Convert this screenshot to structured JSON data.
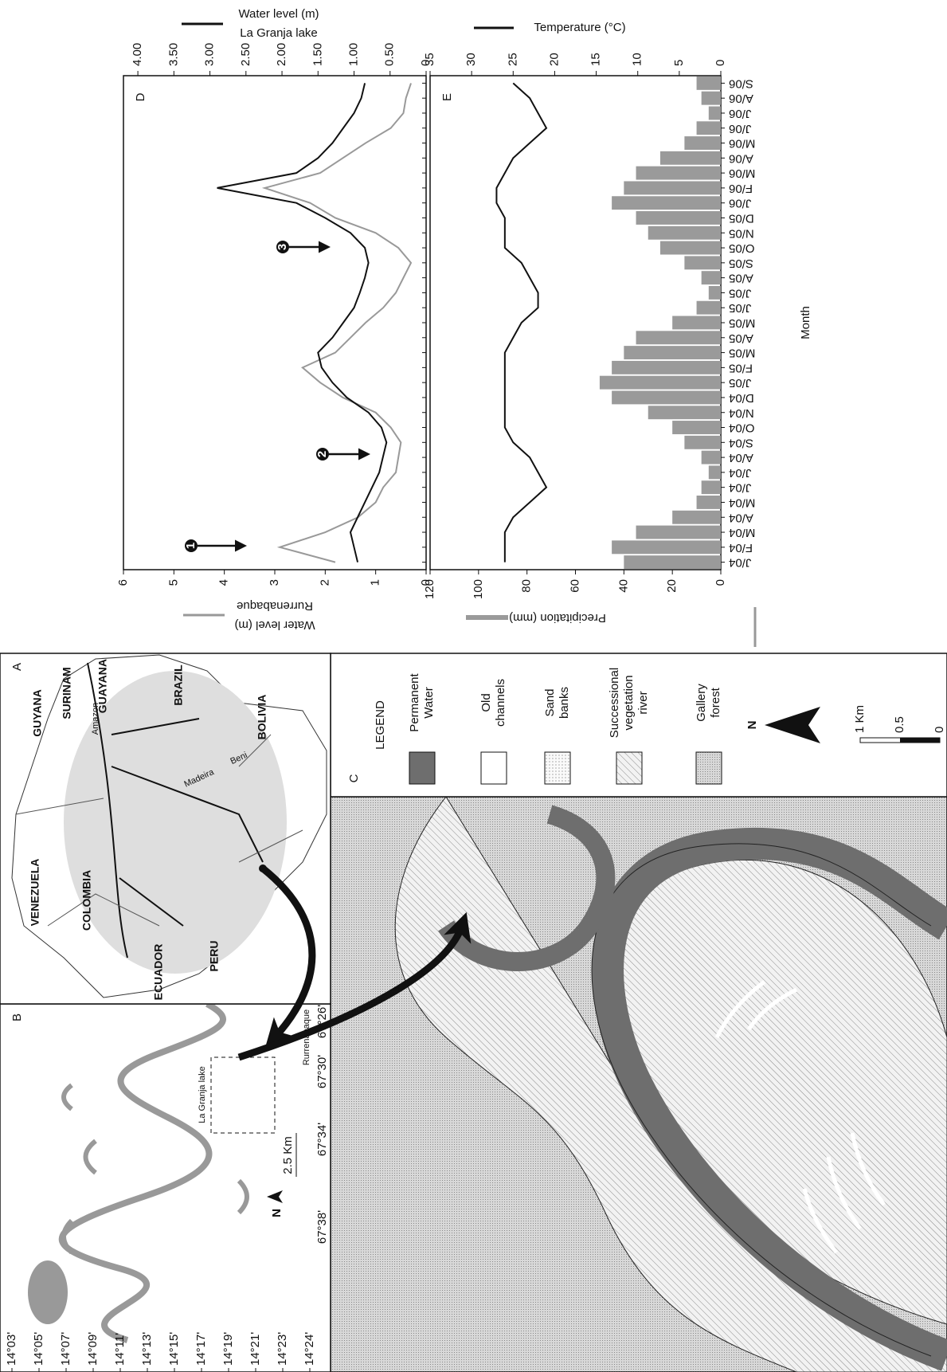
{
  "chart_data": [
    {
      "type": "line",
      "label": "D",
      "ylabel": [
        "Water level (m)",
        "Rurrenabaque"
      ],
      "y2label": [
        "Water level (m)",
        "La Granja lake"
      ],
      "ylim": [
        0,
        6
      ],
      "yticks": [
        0,
        1,
        2,
        3,
        4,
        5,
        6
      ],
      "y2lim": [
        0,
        4.2
      ],
      "y2ticks": [
        0,
        {
          "value": 0.5,
          "label": "0.50"
        },
        {
          "value": 1,
          "label": "1.00"
        },
        {
          "value": 1.5,
          "label": "1.50"
        },
        {
          "value": 2,
          "label": "2.00"
        },
        {
          "value": 2.5,
          "label": "2.50"
        },
        {
          "value": 3,
          "label": "3.00"
        },
        {
          "value": 3.5,
          "label": "3.50"
        },
        {
          "value": 4,
          "label": "4.00"
        }
      ],
      "series": [
        {
          "color": "#999999",
          "axis": "y",
          "values": [
            1.8,
            2.9,
            2.0,
            1.35,
            1.0,
            0.85,
            0.6,
            0.55,
            0.5,
            0.7,
            1.0,
            1.65,
            2.1,
            2.45,
            1.8,
            1.5,
            1.2,
            0.85,
            0.6,
            0.45,
            0.3,
            0.55,
            1.0,
            1.8,
            2.3,
            3.2,
            2.1,
            1.65,
            1.2,
            0.7,
            0.45,
            0.4,
            0.3
          ]
        },
        {
          "color": "#111111",
          "axis": "y2",
          "values": [
            0.95,
            1.0,
            1.05,
            0.95,
            0.85,
            0.75,
            0.65,
            0.6,
            0.55,
            0.62,
            0.8,
            1.1,
            1.3,
            1.45,
            1.5,
            1.3,
            1.15,
            1.0,
            0.92,
            0.85,
            0.8,
            0.85,
            1.05,
            1.4,
            1.8,
            2.9,
            1.8,
            1.5,
            1.3,
            1.15,
            1.0,
            0.9,
            0.85
          ]
        }
      ],
      "annotations": [
        "1",
        "2",
        "3"
      ]
    },
    {
      "type": "combo",
      "label": "E",
      "xlabel": "Month",
      "categories": [
        "J/04",
        "F/04",
        "M/04",
        "A/04",
        "M/04",
        "J/04",
        "J/04",
        "A/04",
        "S/04",
        "O/04",
        "N/04",
        "D/04",
        "J/05",
        "F/05",
        "M/05",
        "A/05",
        "M/05",
        "J/05",
        "J/05",
        "A/05",
        "S/05",
        "O/05",
        "N/05",
        "D/05",
        "J/06",
        "F/06",
        "M/06",
        "A/06",
        "M/06",
        "J/06",
        "J/06",
        "A/06",
        "S/06"
      ],
      "ylabel": "Precipitation (mm)",
      "y2label": "Temperature (°C)",
      "ylim": [
        0,
        120
      ],
      "yticks": [
        0,
        20,
        40,
        60,
        80,
        100,
        120
      ],
      "y2lim": [
        0,
        35
      ],
      "y2ticks": [
        0,
        5,
        10,
        15,
        20,
        25,
        30,
        35
      ],
      "series": [
        {
          "type": "bar",
          "color": "#9a9a9a",
          "axis": "y",
          "values": [
            40,
            45,
            35,
            20,
            10,
            8,
            5,
            8,
            15,
            20,
            30,
            45,
            50,
            45,
            40,
            35,
            20,
            10,
            5,
            8,
            15,
            25,
            30,
            35,
            45,
            40,
            35,
            25,
            15,
            10,
            5,
            8,
            10
          ]
        },
        {
          "type": "line",
          "color": "#111111",
          "axis": "y2",
          "values": [
            26,
            26,
            26,
            25,
            23,
            21,
            22,
            23,
            25,
            26,
            26,
            26,
            26,
            26,
            26,
            25,
            24,
            22,
            22,
            23,
            24,
            26,
            26,
            26,
            27,
            27,
            26,
            25,
            23,
            21,
            22,
            23,
            25
          ]
        }
      ]
    }
  ],
  "maps": {
    "A": {
      "label": "A",
      "countries": [
        "VENEZUELA",
        "GUYANA",
        "SURINAM",
        "GUAYANA",
        "COLOMBIA",
        "ECUADOR",
        "PERU",
        "BRAZIL",
        "BOLIVIA"
      ],
      "rivers": [
        "Amazon",
        "Madeira",
        "Beni"
      ]
    },
    "B": {
      "label": "B",
      "latitudes": [
        "14°03'",
        "14°05'",
        "14°07'",
        "14°09'",
        "14°11'",
        "14°13'",
        "14°15'",
        "14°17'",
        "14°19'",
        "14°21'",
        "14°23'",
        "14°24'"
      ],
      "longitudes": [
        "67°38'",
        "67°34'",
        "67°30'",
        "67°26'"
      ],
      "lake": "La Granja lake",
      "town": "Rurrenabaque",
      "north": "N",
      "scale": "2.5 Km"
    },
    "C": {
      "label": "C",
      "legend_title": "LEGEND",
      "legend": [
        [
          "Permanent",
          "Water"
        ],
        [
          "Old",
          "channels"
        ],
        [
          "Sand",
          "banks"
        ],
        [
          "Successional",
          "vegetation",
          "river"
        ],
        [
          "Gallery",
          "forest"
        ]
      ],
      "north": "N",
      "scale": [
        "0",
        "0.5",
        "1 Km"
      ]
    }
  }
}
